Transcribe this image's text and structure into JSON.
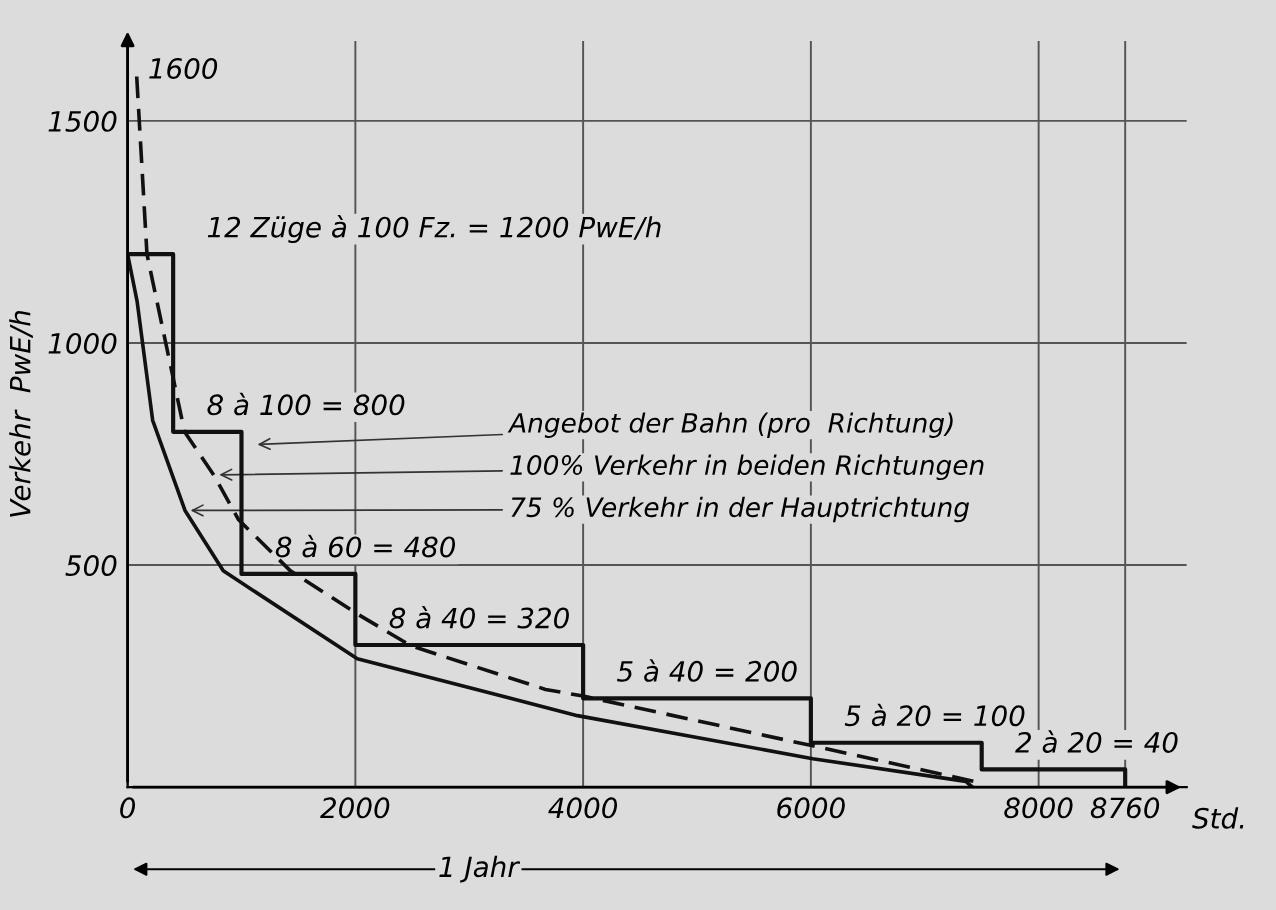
{
  "chart_data": {
    "type": "line",
    "xlabel": "Std.",
    "ylabel": "Verkehr  PwE/h",
    "xlim": [
      0,
      9300
    ],
    "ylim": [
      0,
      1680
    ],
    "xticks": [
      0,
      2000,
      4000,
      6000,
      8000,
      8760
    ],
    "yticks": [
      500,
      1000,
      1500
    ],
    "grid": true,
    "marker": "none",
    "series": [
      {
        "type": "step",
        "color": "#111111",
        "line_style": "solid",
        "x": [
          0,
          400,
          1000,
          2000,
          4000,
          6000,
          7500,
          8760
        ],
        "values": [
          1200,
          800,
          480,
          320,
          200,
          100,
          40,
          0
        ]
      },
      {
        "color": "#111111",
        "line_style": "dashed",
        "x": [
          80,
          170,
          500,
          756,
          975,
          1430,
          2017,
          2490,
          3670,
          4000,
          6017,
          7430,
          7480
        ],
        "values": [
          1600,
          1200,
          800,
          703,
          602,
          487,
          390,
          318,
          220,
          205,
          93,
          13,
          0
        ]
      },
      {
        "color": "#111111",
        "line_style": "solid",
        "x": [
          0,
          84,
          220,
          504,
          840,
          2017,
          3950,
          6017,
          7360,
          7420
        ],
        "values": [
          1200,
          1093,
          826,
          623,
          487,
          289,
          161,
          64,
          13,
          0
        ]
      }
    ],
    "annotations": [
      {
        "text": "1600",
        "x": 80,
        "y": 1600
      },
      {
        "text": "12 Züge à 100 Fz. = 1200 PwE/h",
        "x": 400,
        "y": 1200
      },
      {
        "text": "8 à 100 = 800",
        "x": 400,
        "y": 800
      },
      {
        "text": "8 à 60 = 480",
        "x": 1000,
        "y": 480
      },
      {
        "text": "8 à 40 = 320",
        "x": 2000,
        "y": 320
      },
      {
        "text": "5 à 40 = 200",
        "x": 4000,
        "y": 200
      },
      {
        "text": "5 à 20 = 100",
        "x": 6000,
        "y": 100
      },
      {
        "text": "2 à 20 = 40",
        "x": 7500,
        "y": 40
      },
      {
        "text": "Angebot der Bahn (pro  Richtung)",
        "x": 1092,
        "y": 771
      },
      {
        "text": "100% Verkehr in beiden Richtungen",
        "x": 756,
        "y": 703
      },
      {
        "text": "75 % Verkehr in der Hauptrichtung",
        "x": 504,
        "y": 623
      },
      "1 Jahr"
    ]
  }
}
